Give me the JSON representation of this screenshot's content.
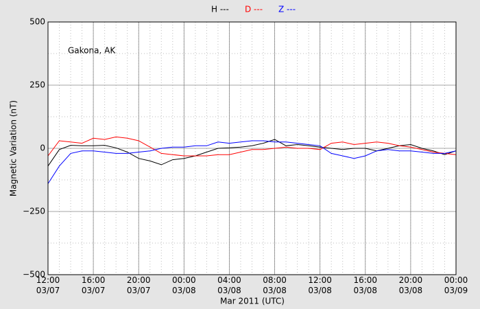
{
  "chart_data": {
    "type": "line",
    "annotation": "Gakona, AK",
    "ylabel": "Magnetic Variation (nT)",
    "xlabel": "Mar 2011 (UTC)",
    "x": [
      "2011-03-07T12:00",
      "2011-03-07T13:00",
      "2011-03-07T14:00",
      "2011-03-07T15:00",
      "2011-03-07T16:00",
      "2011-03-07T17:00",
      "2011-03-07T18:00",
      "2011-03-07T19:00",
      "2011-03-07T20:00",
      "2011-03-07T21:00",
      "2011-03-07T22:00",
      "2011-03-07T23:00",
      "2011-03-08T00:00",
      "2011-03-08T01:00",
      "2011-03-08T02:00",
      "2011-03-08T03:00",
      "2011-03-08T04:00",
      "2011-03-08T05:00",
      "2011-03-08T06:00",
      "2011-03-08T07:00",
      "2011-03-08T08:00",
      "2011-03-08T09:00",
      "2011-03-08T10:00",
      "2011-03-08T11:00",
      "2011-03-08T12:00",
      "2011-03-08T13:00",
      "2011-03-08T14:00",
      "2011-03-08T15:00",
      "2011-03-08T16:00",
      "2011-03-08T17:00",
      "2011-03-08T18:00",
      "2011-03-08T19:00",
      "2011-03-08T20:00",
      "2011-03-08T21:00",
      "2011-03-08T22:00",
      "2011-03-08T23:00",
      "2011-03-09T00:00"
    ],
    "series": [
      {
        "name": "H ---",
        "color": "#000000",
        "values": [
          -70,
          -5,
          12,
          10,
          10,
          12,
          2,
          -15,
          -40,
          -50,
          -65,
          -45,
          -40,
          -30,
          -15,
          0,
          2,
          5,
          10,
          20,
          35,
          10,
          15,
          10,
          5,
          0,
          -5,
          0,
          0,
          -10,
          0,
          10,
          15,
          0,
          -10,
          -25,
          -10
        ]
      },
      {
        "name": "D ---",
        "color": "#ff0000",
        "values": [
          -30,
          30,
          25,
          20,
          40,
          35,
          45,
          40,
          30,
          5,
          -20,
          -25,
          -30,
          -30,
          -30,
          -25,
          -25,
          -15,
          -5,
          -5,
          0,
          5,
          0,
          0,
          -5,
          20,
          25,
          15,
          20,
          25,
          20,
          10,
          5,
          -5,
          -15,
          -20,
          -25
        ]
      },
      {
        "name": "Z ---",
        "color": "#0000ff",
        "values": [
          -140,
          -70,
          -20,
          -10,
          -10,
          -15,
          -20,
          -20,
          -15,
          -10,
          0,
          5,
          5,
          10,
          10,
          25,
          20,
          25,
          30,
          30,
          25,
          25,
          20,
          15,
          10,
          -20,
          -30,
          -40,
          -30,
          -10,
          -5,
          -10,
          -10,
          -15,
          -20,
          -20,
          -10
        ]
      }
    ],
    "xlim": [
      "2011-03-07T12:00",
      "2011-03-09T00:00"
    ],
    "xticks": [
      {
        "value": "2011-03-07T12:00",
        "label": "12:00\n03/07"
      },
      {
        "value": "2011-03-07T16:00",
        "label": "16:00\n03/07"
      },
      {
        "value": "2011-03-07T20:00",
        "label": "20:00\n03/07"
      },
      {
        "value": "2011-03-08T00:00",
        "label": "00:00\n03/08"
      },
      {
        "value": "2011-03-08T04:00",
        "label": "04:00\n03/08"
      },
      {
        "value": "2011-03-08T08:00",
        "label": "08:00\n03/08"
      },
      {
        "value": "2011-03-08T12:00",
        "label": "12:00\n03/08"
      },
      {
        "value": "2011-03-08T16:00",
        "label": "16:00\n03/08"
      },
      {
        "value": "2011-03-08T20:00",
        "label": "20:00\n03/08"
      },
      {
        "value": "2011-03-09T00:00",
        "label": "00:00\n03/09"
      }
    ],
    "ylim": [
      -500,
      500
    ],
    "yticks": [
      {
        "value": -500,
        "label": "−500"
      },
      {
        "value": -250,
        "label": "−250"
      },
      0,
      250,
      500
    ],
    "grid": true,
    "minor_grid": true,
    "legend": "top"
  }
}
